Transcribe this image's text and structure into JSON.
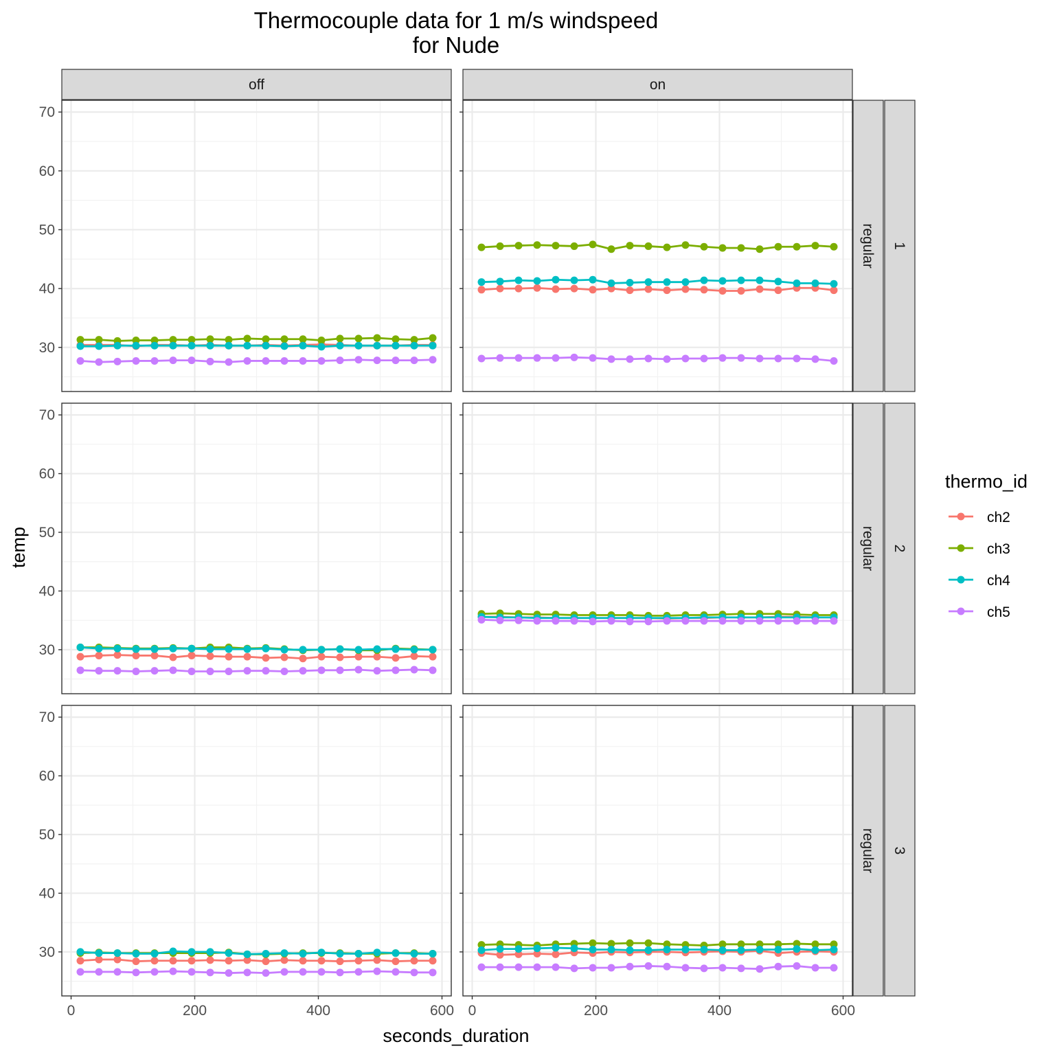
{
  "chart_data": {
    "type": "line",
    "title": "Thermocouple data for 1 m/s windspeed",
    "subtitle": "for Nude",
    "xlabel": "seconds_duration",
    "ylabel": "temp",
    "xlim": [
      -15,
      615
    ],
    "ylim": [
      22.5,
      72
    ],
    "x_ticks": [
      0,
      200,
      400,
      600
    ],
    "y_ticks": [
      30,
      40,
      50,
      60,
      70
    ],
    "legend": {
      "title": "thermo_id",
      "position": "right",
      "entries": [
        {
          "name": "ch2",
          "color": "#F8766D"
        },
        {
          "name": "ch3",
          "color": "#7CAE00"
        },
        {
          "name": "ch4",
          "color": "#00BFC4"
        },
        {
          "name": "ch5",
          "color": "#C77CFF"
        }
      ]
    },
    "facet_columns": [
      "off",
      "on"
    ],
    "facet_rows": [
      {
        "label1": "regular",
        "label2": "1"
      },
      {
        "label1": "regular",
        "label2": "2"
      },
      {
        "label1": "regular",
        "label2": "3"
      }
    ],
    "panels": [
      {
        "row": 0,
        "col": 0,
        "x": [
          15,
          45,
          75,
          105,
          135,
          165,
          195,
          225,
          255,
          285,
          315,
          345,
          375,
          405,
          435,
          465,
          495,
          525,
          555,
          585
        ],
        "series": [
          {
            "name": "ch2",
            "values": [
              30.4,
              30.4,
              30.4,
              30.2,
              30.4,
              30.4,
              30.3,
              30.4,
              30.3,
              30.3,
              30.4,
              30.3,
              30.4,
              30.5,
              30.4,
              30.3,
              30.3,
              30.3,
              30.4,
              30.4
            ]
          },
          {
            "name": "ch3",
            "values": [
              31.3,
              31.3,
              31.1,
              31.2,
              31.2,
              31.3,
              31.3,
              31.4,
              31.3,
              31.5,
              31.4,
              31.4,
              31.4,
              31.2,
              31.5,
              31.5,
              31.6,
              31.4,
              31.3,
              31.6
            ]
          },
          {
            "name": "ch4",
            "values": [
              30.2,
              30.2,
              30.3,
              30.3,
              30.3,
              30.3,
              30.3,
              30.3,
              30.3,
              30.3,
              30.3,
              30.2,
              30.3,
              30.1,
              30.3,
              30.3,
              30.3,
              30.3,
              30.3,
              30.3
            ]
          },
          {
            "name": "ch5",
            "values": [
              27.7,
              27.5,
              27.6,
              27.7,
              27.7,
              27.8,
              27.8,
              27.6,
              27.5,
              27.7,
              27.7,
              27.7,
              27.7,
              27.7,
              27.8,
              27.9,
              27.8,
              27.8,
              27.8,
              27.9
            ]
          }
        ]
      },
      {
        "row": 0,
        "col": 1,
        "x": [
          15,
          45,
          75,
          105,
          135,
          165,
          195,
          225,
          255,
          285,
          315,
          345,
          375,
          405,
          435,
          465,
          495,
          525,
          555,
          585
        ],
        "series": [
          {
            "name": "ch2",
            "values": [
              39.8,
              40.0,
              40.0,
              40.1,
              39.9,
              40.0,
              39.8,
              40.0,
              39.7,
              39.9,
              39.7,
              39.9,
              39.8,
              39.6,
              39.6,
              39.9,
              39.7,
              40.1,
              40.1,
              39.7
            ]
          },
          {
            "name": "ch3",
            "values": [
              47.0,
              47.2,
              47.3,
              47.4,
              47.3,
              47.2,
              47.5,
              46.7,
              47.3,
              47.2,
              47.0,
              47.4,
              47.1,
              46.9,
              46.9,
              46.7,
              47.1,
              47.1,
              47.3,
              47.1
            ]
          },
          {
            "name": "ch4",
            "values": [
              41.1,
              41.2,
              41.4,
              41.3,
              41.5,
              41.4,
              41.5,
              40.9,
              41.0,
              41.1,
              41.1,
              41.1,
              41.4,
              41.3,
              41.4,
              41.4,
              41.2,
              40.9,
              40.9,
              40.8
            ]
          },
          {
            "name": "ch5",
            "values": [
              28.1,
              28.2,
              28.2,
              28.2,
              28.2,
              28.3,
              28.2,
              28.0,
              28.0,
              28.1,
              28.0,
              28.1,
              28.1,
              28.2,
              28.2,
              28.1,
              28.1,
              28.1,
              28.0,
              27.7
            ]
          }
        ]
      },
      {
        "row": 1,
        "col": 0,
        "x": [
          15,
          45,
          75,
          105,
          135,
          165,
          195,
          225,
          255,
          285,
          315,
          345,
          375,
          405,
          435,
          465,
          495,
          525,
          555,
          585
        ],
        "series": [
          {
            "name": "ch2",
            "values": [
              28.8,
              29.0,
              29.1,
              29.0,
              29.0,
              28.7,
              29.0,
              28.9,
              28.8,
              28.8,
              28.6,
              28.7,
              28.5,
              28.8,
              28.7,
              28.8,
              28.8,
              28.6,
              28.9,
              28.8
            ]
          },
          {
            "name": "ch3",
            "values": [
              30.4,
              30.4,
              30.3,
              30.2,
              30.2,
              30.3,
              30.2,
              30.4,
              30.4,
              30.2,
              30.3,
              30.1,
              29.9,
              30.0,
              30.1,
              29.9,
              29.9,
              30.2,
              30.1,
              30.0
            ]
          },
          {
            "name": "ch4",
            "values": [
              30.4,
              30.2,
              30.2,
              30.1,
              30.1,
              30.2,
              30.2,
              30.1,
              30.1,
              30.1,
              30.2,
              30.0,
              30.0,
              30.0,
              30.1,
              30.0,
              30.1,
              30.1,
              30.0,
              30.0
            ]
          },
          {
            "name": "ch5",
            "values": [
              26.5,
              26.4,
              26.4,
              26.3,
              26.4,
              26.5,
              26.3,
              26.3,
              26.3,
              26.4,
              26.4,
              26.3,
              26.4,
              26.5,
              26.5,
              26.6,
              26.4,
              26.5,
              26.6,
              26.5
            ]
          }
        ]
      },
      {
        "row": 1,
        "col": 1,
        "x": [
          15,
          45,
          75,
          105,
          135,
          165,
          195,
          225,
          255,
          285,
          315,
          345,
          375,
          405,
          435,
          465,
          495,
          525,
          555,
          585
        ],
        "series": [
          {
            "name": "ch2",
            "values": [
              35.6,
              35.6,
              35.5,
              35.5,
              35.4,
              35.4,
              35.4,
              35.4,
              35.4,
              35.4,
              35.3,
              35.4,
              35.4,
              35.5,
              35.5,
              35.5,
              35.6,
              35.6,
              35.5,
              35.5
            ]
          },
          {
            "name": "ch3",
            "values": [
              36.1,
              36.2,
              36.1,
              36.0,
              36.0,
              35.9,
              35.9,
              35.9,
              35.9,
              35.8,
              35.8,
              35.9,
              35.9,
              36.0,
              36.1,
              36.1,
              36.1,
              36.0,
              35.9,
              35.9
            ]
          },
          {
            "name": "ch4",
            "values": [
              35.6,
              35.5,
              35.5,
              35.4,
              35.4,
              35.4,
              35.4,
              35.4,
              35.4,
              35.4,
              35.4,
              35.4,
              35.5,
              35.5,
              35.5,
              35.5,
              35.5,
              35.5,
              35.5,
              35.5
            ]
          },
          {
            "name": "ch5",
            "values": [
              35.1,
              35.0,
              35.0,
              34.9,
              34.9,
              34.9,
              34.8,
              34.9,
              34.8,
              34.8,
              34.9,
              34.9,
              34.9,
              34.9,
              34.9,
              34.9,
              34.9,
              34.9,
              34.9,
              34.9
            ]
          }
        ]
      },
      {
        "row": 2,
        "col": 0,
        "x": [
          15,
          45,
          75,
          105,
          135,
          165,
          195,
          225,
          255,
          285,
          315,
          345,
          375,
          405,
          435,
          465,
          495,
          525,
          555,
          585
        ],
        "series": [
          {
            "name": "ch2",
            "values": [
              28.5,
              28.7,
              28.7,
              28.4,
              28.5,
              28.5,
              28.5,
              28.6,
              28.5,
              28.6,
              28.4,
              28.6,
              28.5,
              28.5,
              28.4,
              28.5,
              28.6,
              28.4,
              28.5,
              28.5
            ]
          },
          {
            "name": "ch3",
            "values": [
              29.8,
              29.9,
              29.8,
              29.8,
              29.8,
              29.8,
              29.8,
              29.8,
              29.9,
              29.6,
              29.6,
              29.7,
              29.8,
              29.8,
              29.8,
              29.7,
              29.7,
              29.8,
              29.8,
              29.7
            ]
          },
          {
            "name": "ch4",
            "values": [
              30.0,
              29.8,
              29.8,
              29.7,
              29.7,
              30.1,
              30.0,
              30.0,
              29.8,
              29.6,
              29.7,
              29.8,
              29.7,
              29.9,
              29.7,
              29.7,
              29.9,
              29.8,
              29.7,
              29.7
            ]
          },
          {
            "name": "ch5",
            "values": [
              26.6,
              26.6,
              26.6,
              26.5,
              26.6,
              26.7,
              26.6,
              26.5,
              26.4,
              26.5,
              26.4,
              26.6,
              26.6,
              26.6,
              26.5,
              26.6,
              26.7,
              26.6,
              26.5,
              26.5
            ]
          }
        ]
      },
      {
        "row": 2,
        "col": 1,
        "x": [
          15,
          45,
          75,
          105,
          135,
          165,
          195,
          225,
          255,
          285,
          315,
          345,
          375,
          405,
          435,
          465,
          495,
          525,
          555,
          585
        ],
        "series": [
          {
            "name": "ch2",
            "values": [
              29.8,
              29.5,
              29.6,
              29.7,
              29.6,
              29.9,
              29.8,
              30.0,
              29.9,
              30.0,
              30.0,
              29.9,
              30.0,
              30.1,
              30.0,
              30.2,
              29.8,
              30.0,
              30.1,
              30.0
            ]
          },
          {
            "name": "ch3",
            "values": [
              31.2,
              31.3,
              31.2,
              31.1,
              31.3,
              31.4,
              31.5,
              31.4,
              31.5,
              31.5,
              31.3,
              31.2,
              31.1,
              31.3,
              31.3,
              31.3,
              31.3,
              31.4,
              31.3,
              31.3
            ]
          },
          {
            "name": "ch4",
            "values": [
              30.3,
              30.5,
              30.5,
              30.6,
              30.7,
              30.6,
              30.4,
              30.4,
              30.3,
              30.3,
              30.4,
              30.4,
              30.4,
              30.3,
              30.3,
              30.4,
              30.4,
              30.5,
              30.3,
              30.4
            ]
          },
          {
            "name": "ch5",
            "values": [
              27.4,
              27.4,
              27.4,
              27.4,
              27.4,
              27.2,
              27.3,
              27.3,
              27.5,
              27.6,
              27.5,
              27.3,
              27.2,
              27.3,
              27.2,
              27.1,
              27.5,
              27.6,
              27.3,
              27.3
            ]
          }
        ]
      }
    ]
  }
}
